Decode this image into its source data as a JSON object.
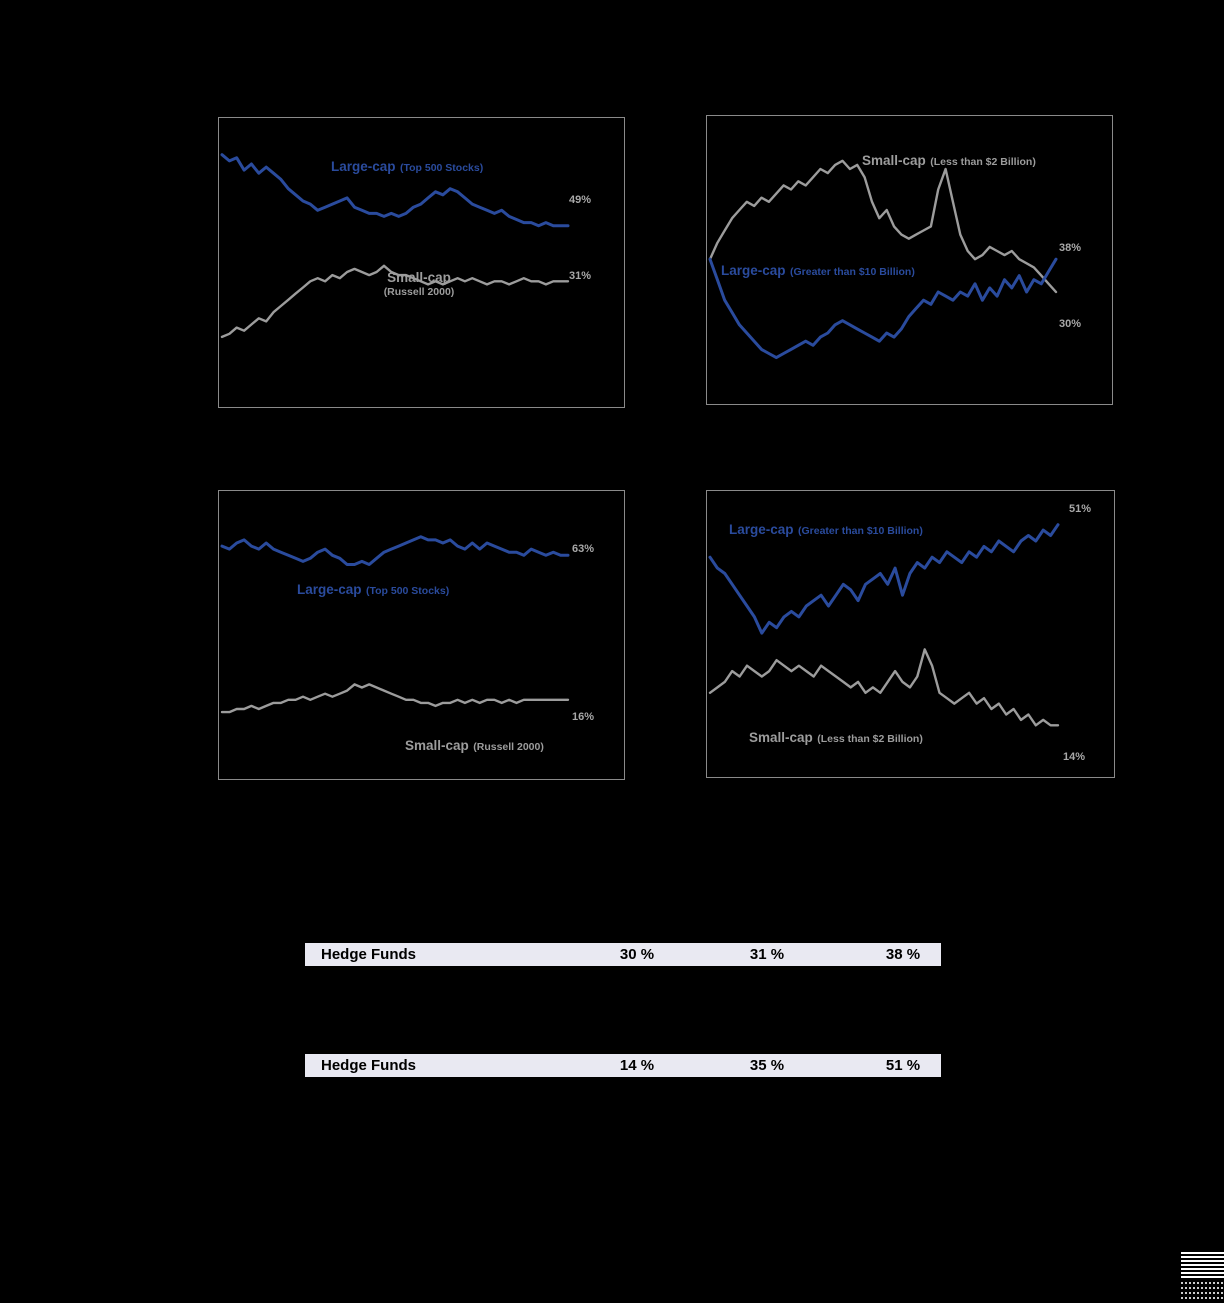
{
  "colors": {
    "large_cap_blue": "#2a4b9d",
    "small_cap_gray": "#9c9c9c",
    "table_row_bg": "#e9e9f2",
    "end_label_gray": "#a8a8a8",
    "background": "#000000"
  },
  "chart_data": [
    {
      "type": "line",
      "name": "top-left-chart",
      "ylim": [
        0,
        80
      ],
      "legend_position": "inline-labels",
      "grid": false,
      "series": [
        {
          "name": "Large-cap (Top 500 Stocks)",
          "label_main": "Large-cap",
          "label_sub": "(Top 500 Stocks)",
          "color": "#2a4b9d",
          "end_label": "49%",
          "end_value": 49,
          "values": [
            72,
            70,
            71,
            67,
            69,
            66,
            68,
            66,
            64,
            61,
            59,
            57,
            56,
            54,
            55,
            56,
            57,
            58,
            55,
            54,
            53,
            53,
            52,
            53,
            52,
            53,
            55,
            56,
            58,
            60,
            59,
            61,
            60,
            58,
            56,
            55,
            54,
            53,
            54,
            52,
            51,
            50,
            50,
            49,
            50,
            49,
            49,
            49
          ]
        },
        {
          "name": "Small-cap (Russell 2000)",
          "label_main": "Small-cap",
          "label_sub": "(Russell 2000)",
          "color": "#9c9c9c",
          "end_label": "31%",
          "end_value": 31,
          "values": [
            13,
            14,
            16,
            15,
            17,
            19,
            18,
            21,
            23,
            25,
            27,
            29,
            31,
            32,
            31,
            33,
            32,
            34,
            35,
            34,
            33,
            34,
            36,
            34,
            33,
            33,
            32,
            31,
            30,
            31,
            30,
            31,
            32,
            31,
            32,
            31,
            30,
            31,
            31,
            30,
            31,
            32,
            31,
            31,
            30,
            31,
            31,
            31
          ]
        }
      ]
    },
    {
      "type": "line",
      "name": "top-right-chart",
      "ylim": [
        10,
        70
      ],
      "legend_position": "inline-labels",
      "grid": false,
      "series": [
        {
          "name": "Large-cap (Greater than $10 Billion)",
          "label_main": "Large-cap",
          "label_sub": "(Greater than $10 Billion)",
          "color": "#2a4b9d",
          "end_label": "38%",
          "end_value": 38,
          "values": [
            38,
            33,
            28,
            25,
            22,
            20,
            18,
            16,
            15,
            14,
            15,
            16,
            17,
            18,
            17,
            19,
            20,
            22,
            23,
            22,
            21,
            20,
            19,
            18,
            20,
            19,
            21,
            24,
            26,
            28,
            27,
            30,
            29,
            28,
            30,
            29,
            32,
            28,
            31,
            29,
            33,
            31,
            34,
            30,
            33,
            32,
            35,
            38
          ]
        },
        {
          "name": "Small-cap (Less than $2 Billion)",
          "label_main": "Small-cap",
          "label_sub": "(Less than $2 Billion)",
          "color": "#9c9c9c",
          "end_label": "30%",
          "end_value": 30,
          "values": [
            38,
            42,
            45,
            48,
            50,
            52,
            51,
            53,
            52,
            54,
            56,
            55,
            57,
            56,
            58,
            60,
            59,
            61,
            62,
            60,
            61,
            58,
            52,
            48,
            50,
            46,
            44,
            43,
            44,
            45,
            46,
            55,
            60,
            52,
            44,
            40,
            38,
            39,
            41,
            40,
            39,
            40,
            38,
            37,
            36,
            34,
            32,
            30
          ]
        }
      ]
    },
    {
      "type": "line",
      "name": "bottom-left-chart",
      "ylim": [
        0,
        80
      ],
      "legend_position": "inline-labels",
      "grid": false,
      "series": [
        {
          "name": "Large-cap (Top 500 Stocks)",
          "label_main": "Large-cap",
          "label_sub": "(Top 500 Stocks)",
          "color": "#2a4b9d",
          "end_label": "63%",
          "end_value": 63,
          "values": [
            66,
            65,
            67,
            68,
            66,
            65,
            67,
            65,
            64,
            63,
            62,
            61,
            62,
            64,
            65,
            63,
            62,
            60,
            60,
            61,
            60,
            62,
            64,
            65,
            66,
            67,
            68,
            69,
            68,
            68,
            67,
            68,
            66,
            65,
            67,
            65,
            67,
            66,
            65,
            64,
            64,
            63,
            65,
            64,
            63,
            64,
            63,
            63
          ]
        },
        {
          "name": "Small-cap (Russell 2000)",
          "label_main": "Small-cap",
          "label_sub": "(Russell 2000)",
          "color": "#9c9c9c",
          "end_label": "16%",
          "end_value": 16,
          "values": [
            12,
            12,
            13,
            13,
            14,
            13,
            14,
            15,
            15,
            16,
            16,
            17,
            16,
            17,
            18,
            17,
            18,
            19,
            21,
            20,
            21,
            20,
            19,
            18,
            17,
            16,
            16,
            15,
            15,
            14,
            15,
            15,
            16,
            15,
            16,
            15,
            16,
            16,
            15,
            16,
            15,
            16,
            16,
            16,
            16,
            16,
            16,
            16
          ]
        }
      ]
    },
    {
      "type": "line",
      "name": "bottom-right-chart",
      "ylim": [
        10,
        55
      ],
      "legend_position": "inline-labels",
      "grid": false,
      "series": [
        {
          "name": "Large-cap (Greater than $10 Billion)",
          "label_main": "Large-cap",
          "label_sub": "(Greater than $10 Billion)",
          "color": "#2a4b9d",
          "end_label": "51%",
          "end_value": 51,
          "values": [
            45,
            43,
            42,
            40,
            38,
            36,
            34,
            31,
            33,
            32,
            34,
            35,
            34,
            36,
            37,
            38,
            36,
            38,
            40,
            39,
            37,
            40,
            41,
            42,
            40,
            43,
            38,
            42,
            44,
            43,
            45,
            44,
            46,
            45,
            44,
            46,
            45,
            47,
            46,
            48,
            47,
            46,
            48,
            49,
            48,
            50,
            49,
            51
          ]
        },
        {
          "name": "Small-cap (Less than $2 Billion)",
          "label_main": "Small-cap",
          "label_sub": "(Less than $2 Billion)",
          "color": "#9c9c9c",
          "end_label": "14%",
          "end_value": 14,
          "values": [
            20,
            21,
            22,
            24,
            23,
            25,
            24,
            23,
            24,
            26,
            25,
            24,
            25,
            24,
            23,
            25,
            24,
            23,
            22,
            21,
            22,
            20,
            21,
            20,
            22,
            24,
            22,
            21,
            23,
            28,
            25,
            20,
            19,
            18,
            19,
            20,
            18,
            19,
            17,
            18,
            16,
            17,
            15,
            16,
            14,
            15,
            14,
            14
          ]
        }
      ]
    }
  ],
  "tables": {
    "rows": [
      {
        "label": "Hedge Funds",
        "values": [
          "30 %",
          "31 %",
          "38 %"
        ]
      },
      {
        "label": "Hedge Funds",
        "values": [
          "14 %",
          "35 %",
          "51 %"
        ]
      }
    ]
  },
  "icons": {
    "barcode": "barcode-icon"
  }
}
